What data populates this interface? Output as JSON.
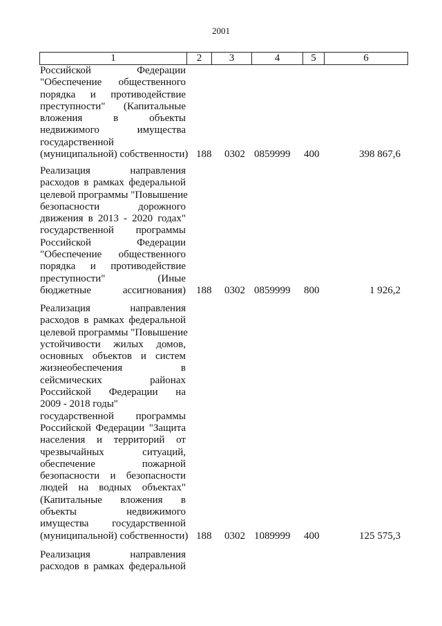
{
  "page_number": "2001",
  "header": [
    "1",
    "2",
    "3",
    "4",
    "5",
    "6"
  ],
  "rows": [
    {
      "lines": [
        "Российской Федерации",
        "\"Обеспечение общественного",
        "порядка и противодействие",
        "преступности\" (Капитальные",
        "вложения в объекты",
        "недвижимого имущества",
        "государственной",
        "(муниципальной) собственности)"
      ],
      "c2": "188",
      "c3": "0302",
      "c4": "0859999",
      "c5": "400",
      "c6": "398 867,6"
    },
    {
      "lines": [
        "Реализация направления",
        "расходов в рамках федеральной",
        "целевой программы \"Повышение",
        "безопасности дорожного",
        "движения в 2013 - 2020 годах\"",
        "государственной программы",
        "Российской Федерации",
        "\"Обеспечение общественного",
        "порядка и противодействие",
        "преступности\" (Иные",
        "бюджетные ассигнования)"
      ],
      "c2": "188",
      "c3": "0302",
      "c4": "0859999",
      "c5": "800",
      "c6": "1 926,2"
    },
    {
      "lines": [
        "Реализация направления",
        "расходов в рамках федеральной",
        "целевой программы \"Повышение",
        "устойчивости жилых домов,",
        "основных объектов и систем",
        "жизнеобеспечения в",
        "сейсмических районах",
        "Российской Федерации на",
        "2009 - 2018 годы\"",
        "государственной программы",
        "Российской Федерации \"Защита",
        "населения и территорий от",
        "чрезвычайных ситуаций,",
        "обеспечение пожарной",
        "безопасности и безопасности",
        "людей на водных объектах\"",
        "(Капитальные вложения в",
        "объекты недвижимого",
        "имущества государственной",
        "(муниципальной) собственности)"
      ],
      "c2": "188",
      "c3": "0302",
      "c4": "1089999",
      "c5": "400",
      "c6": "125 575,3"
    },
    {
      "lines": [
        "Реализация направления",
        "расходов в рамках федеральной"
      ],
      "c2": "",
      "c3": "",
      "c4": "",
      "c5": "",
      "c6": ""
    }
  ]
}
